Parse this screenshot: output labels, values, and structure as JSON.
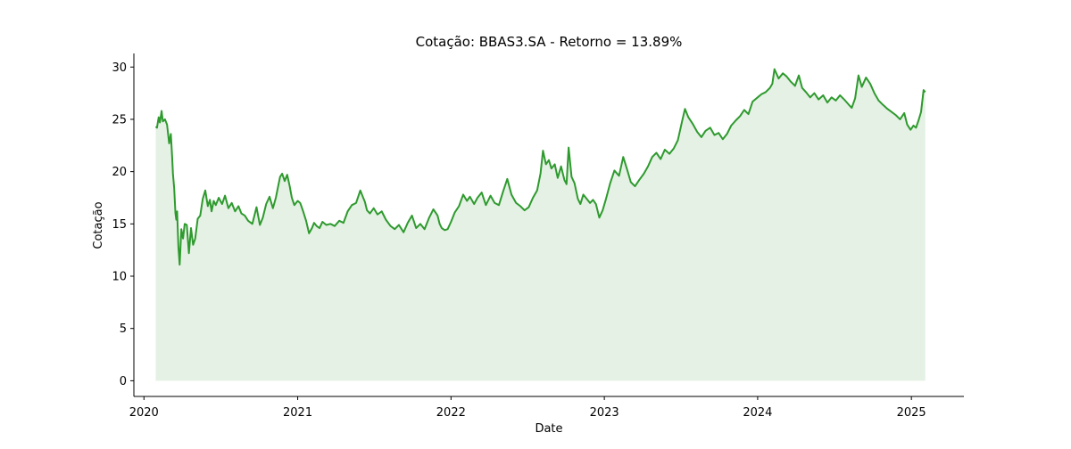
{
  "chart_data": {
    "type": "area",
    "title": "Cotação: BBAS3.SA - Retorno = 13.89%",
    "xlabel": "Date",
    "ylabel": "Cotação",
    "xlim": [
      "2019-12-08",
      "2025-05-06"
    ],
    "ylim": [
      -1.5,
      31.3
    ],
    "x_ticks": [
      "2020",
      "2021",
      "2022",
      "2023",
      "2024",
      "2025"
    ],
    "x_tick_dates": [
      "2020-01-01",
      "2021-01-01",
      "2022-01-01",
      "2023-01-01",
      "2024-01-01",
      "2025-01-01"
    ],
    "y_ticks": [
      0,
      5,
      10,
      15,
      20,
      25,
      30
    ],
    "y_tick_labels": [
      "0",
      "5",
      "10",
      "15",
      "20",
      "25",
      "30"
    ],
    "grid": false,
    "line_color": "#2e9a2e",
    "fill_color": "#e4f1e4",
    "series": [
      {
        "x": [
          "2020-01-29",
          "2020-02-01",
          "2020-02-05",
          "2020-02-08",
          "2020-02-12",
          "2020-02-15",
          "2020-02-20",
          "2020-02-25",
          "2020-03-01",
          "2020-03-05",
          "2020-03-08",
          "2020-03-10",
          "2020-03-13",
          "2020-03-16",
          "2020-03-18",
          "2020-03-20",
          "2020-03-23",
          "2020-03-26",
          "2020-03-30",
          "2020-04-03",
          "2020-04-07",
          "2020-04-12",
          "2020-04-17",
          "2020-04-22",
          "2020-04-27",
          "2020-05-02",
          "2020-05-08",
          "2020-05-14",
          "2020-05-20",
          "2020-05-26",
          "2020-06-01",
          "2020-06-06",
          "2020-06-10",
          "2020-06-15",
          "2020-06-20",
          "2020-06-27",
          "2020-07-05",
          "2020-07-12",
          "2020-07-20",
          "2020-07-28",
          "2020-08-05",
          "2020-08-13",
          "2020-08-20",
          "2020-08-28",
          "2020-09-05",
          "2020-09-15",
          "2020-09-25",
          "2020-10-03",
          "2020-10-10",
          "2020-10-18",
          "2020-10-26",
          "2020-11-03",
          "2020-11-10",
          "2020-11-15",
          "2020-11-20",
          "2020-11-25",
          "2020-12-01",
          "2020-12-07",
          "2020-12-13",
          "2020-12-18",
          "2020-12-24",
          "2021-01-01",
          "2021-01-07",
          "2021-01-14",
          "2021-01-21",
          "2021-01-28",
          "2021-02-04",
          "2021-02-09",
          "2021-02-15",
          "2021-02-22",
          "2021-03-01",
          "2021-03-10",
          "2021-03-20",
          "2021-03-30",
          "2021-04-10",
          "2021-04-20",
          "2021-04-30",
          "2021-05-10",
          "2021-05-20",
          "2021-05-30",
          "2021-06-05",
          "2021-06-10",
          "2021-06-15",
          "2021-06-22",
          "2021-07-01",
          "2021-07-10",
          "2021-07-20",
          "2021-07-30",
          "2021-08-10",
          "2021-08-20",
          "2021-08-30",
          "2021-09-10",
          "2021-09-20",
          "2021-09-30",
          "2021-10-10",
          "2021-10-20",
          "2021-10-30",
          "2021-11-10",
          "2021-11-20",
          "2021-11-30",
          "2021-12-05",
          "2021-12-10",
          "2021-12-17",
          "2021-12-24",
          "2022-01-01",
          "2022-01-10",
          "2022-01-20",
          "2022-01-30",
          "2022-02-08",
          "2022-02-15",
          "2022-02-25",
          "2022-03-05",
          "2022-03-15",
          "2022-03-25",
          "2022-04-05",
          "2022-04-15",
          "2022-04-25",
          "2022-05-05",
          "2022-05-15",
          "2022-05-25",
          "2022-06-05",
          "2022-06-15",
          "2022-06-25",
          "2022-07-05",
          "2022-07-15",
          "2022-07-25",
          "2022-08-02",
          "2022-08-08",
          "2022-08-15",
          "2022-08-22",
          "2022-08-28",
          "2022-09-05",
          "2022-09-12",
          "2022-09-20",
          "2022-09-28",
          "2022-10-03",
          "2022-10-08",
          "2022-10-15",
          "2022-10-22",
          "2022-10-30",
          "2022-11-05",
          "2022-11-12",
          "2022-11-20",
          "2022-11-28",
          "2022-12-05",
          "2022-12-12",
          "2022-12-20",
          "2022-12-28",
          "2023-01-05",
          "2023-01-15",
          "2023-01-25",
          "2023-02-05",
          "2023-02-15",
          "2023-02-25",
          "2023-03-05",
          "2023-03-15",
          "2023-03-25",
          "2023-04-05",
          "2023-04-15",
          "2023-04-25",
          "2023-05-05",
          "2023-05-15",
          "2023-05-25",
          "2023-06-05",
          "2023-06-15",
          "2023-06-25",
          "2023-07-05",
          "2023-07-12",
          "2023-07-20",
          "2023-07-30",
          "2023-08-10",
          "2023-08-20",
          "2023-08-30",
          "2023-09-10",
          "2023-09-20",
          "2023-09-30",
          "2023-10-10",
          "2023-10-20",
          "2023-10-30",
          "2023-11-10",
          "2023-11-20",
          "2023-11-30",
          "2023-12-10",
          "2023-12-20",
          "2024-01-01",
          "2024-01-10",
          "2024-01-20",
          "2024-01-30",
          "2024-02-05",
          "2024-02-10",
          "2024-02-20",
          "2024-03-01",
          "2024-03-10",
          "2024-03-20",
          "2024-03-30",
          "2024-04-08",
          "2024-04-16",
          "2024-04-25",
          "2024-05-05",
          "2024-05-15",
          "2024-05-25",
          "2024-06-05",
          "2024-06-15",
          "2024-06-25",
          "2024-07-05",
          "2024-07-15",
          "2024-07-25",
          "2024-08-05",
          "2024-08-12",
          "2024-08-20",
          "2024-08-28",
          "2024-09-05",
          "2024-09-15",
          "2024-09-25",
          "2024-10-05",
          "2024-10-15",
          "2024-10-25",
          "2024-11-05",
          "2024-11-15",
          "2024-11-25",
          "2024-12-05",
          "2024-12-15",
          "2024-12-22",
          "2024-12-30",
          "2025-01-06",
          "2025-01-12",
          "2025-01-18",
          "2025-01-24",
          "2025-01-30",
          "2025-02-03"
        ],
        "values": [
          24.3,
          24.2,
          25.2,
          24.7,
          25.8,
          24.8,
          25.0,
          24.5,
          22.7,
          23.6,
          21.5,
          19.8,
          18.4,
          16.0,
          15.4,
          16.2,
          12.8,
          11.1,
          14.5,
          13.6,
          15.0,
          14.9,
          12.2,
          14.6,
          13.0,
          13.6,
          15.5,
          15.8,
          17.4,
          18.2,
          16.7,
          17.3,
          16.2,
          17.2,
          16.8,
          17.5,
          16.9,
          17.7,
          16.5,
          17.0,
          16.2,
          16.7,
          16.0,
          15.8,
          15.3,
          15.0,
          16.6,
          14.9,
          15.6,
          16.9,
          17.6,
          16.5,
          17.5,
          18.5,
          19.5,
          19.8,
          19.1,
          19.7,
          18.6,
          17.5,
          16.8,
          17.2,
          17.0,
          16.2,
          15.3,
          14.1,
          14.6,
          15.1,
          14.8,
          14.6,
          15.2,
          14.9,
          15.0,
          14.8,
          15.3,
          15.1,
          16.2,
          16.8,
          17.0,
          18.2,
          17.6,
          17.1,
          16.3,
          16.0,
          16.5,
          15.9,
          16.2,
          15.4,
          14.8,
          14.5,
          14.9,
          14.2,
          15.1,
          15.8,
          14.6,
          15.0,
          14.5,
          15.6,
          16.4,
          15.8,
          15.0,
          14.6,
          14.4,
          14.5,
          15.2,
          16.1,
          16.7,
          17.8,
          17.2,
          17.6,
          16.9,
          17.5,
          18.0,
          16.8,
          17.7,
          17.0,
          16.8,
          18.1,
          19.3,
          17.8,
          17.0,
          16.7,
          16.3,
          16.6,
          17.5,
          18.2,
          19.8,
          22.0,
          20.7,
          21.1,
          20.3,
          20.7,
          19.4,
          20.5,
          19.2,
          18.8,
          22.3,
          19.5,
          18.9,
          17.4,
          16.9,
          17.8,
          17.4,
          17.0,
          17.3,
          16.9,
          15.6,
          16.3,
          17.4,
          18.9,
          20.1,
          19.6,
          21.4,
          20.1,
          19.0,
          18.6,
          19.2,
          19.8,
          20.5,
          21.4,
          21.8,
          21.2,
          22.1,
          21.7,
          22.2,
          23.0,
          24.8,
          26.0,
          25.2,
          24.6,
          23.8,
          23.3,
          23.9,
          24.2,
          23.5,
          23.7,
          23.1,
          23.6,
          24.4,
          24.9,
          25.3,
          25.9,
          25.5,
          26.7,
          27.1,
          27.4,
          27.6,
          28.0,
          28.4,
          29.8,
          28.9,
          29.4,
          29.1,
          28.6,
          28.2,
          29.2,
          28.0,
          27.6,
          27.1,
          27.5,
          26.9,
          27.3,
          26.6,
          27.1,
          26.8,
          27.3,
          26.9,
          26.4,
          26.1,
          27.0,
          29.2,
          28.1,
          29.0,
          28.4,
          27.5,
          26.8,
          26.4,
          26.0,
          25.7,
          25.4,
          25.0,
          25.6,
          24.5,
          24.0,
          24.4,
          24.2,
          24.9,
          25.7,
          27.8,
          27.6
        ]
      }
    ]
  }
}
